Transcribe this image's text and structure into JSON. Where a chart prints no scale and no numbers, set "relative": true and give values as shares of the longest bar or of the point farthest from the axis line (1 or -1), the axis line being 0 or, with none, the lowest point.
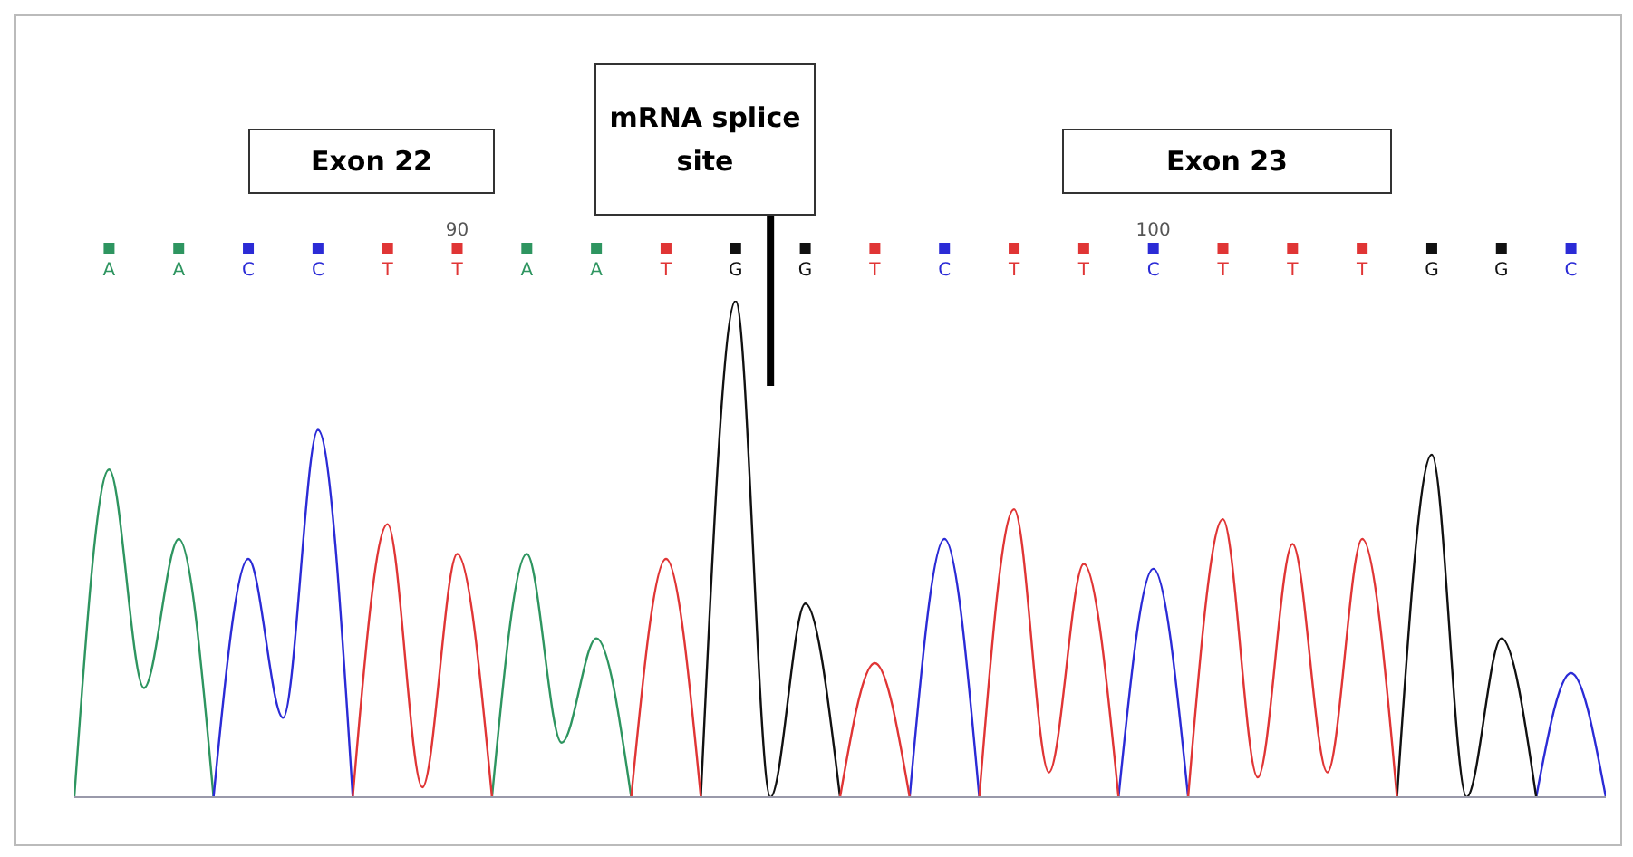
{
  "chart_data": {
    "type": "line",
    "relative": true,
    "annotations": [
      "Exon 22",
      "Exon 23",
      "A",
      "A",
      "C",
      "C",
      "T",
      "T",
      "A",
      "A",
      "T",
      "G",
      "G",
      "T",
      "C",
      "T",
      "T",
      "C",
      "T",
      "T",
      "T",
      "G",
      "G",
      "C"
    ],
    "ref_lines": [
      {
        "axis": "x",
        "value": 94.5,
        "label": "mRNA splice site",
        "color": "#000000"
      }
    ],
    "xlim": [
      84.5,
      106.5
    ],
    "xticks": [
      90,
      100
    ],
    "grid": false,
    "legend": false,
    "marker": "none",
    "line_style": "solid",
    "x": [
      84.5,
      85,
      85.5,
      86,
      86.5,
      87,
      87.5,
      88,
      88.5,
      89,
      89.5,
      90,
      90.5,
      91,
      91.5,
      92,
      92.5,
      93,
      93.5,
      94,
      94.5,
      95,
      95.5,
      96,
      96.5,
      97,
      97.5,
      98,
      98.5,
      99,
      99.5,
      100,
      100.5,
      101,
      101.5,
      102,
      102.5,
      103,
      103.5,
      104,
      104.5,
      105,
      105.5,
      106,
      106.5
    ],
    "series": [
      {
        "color": "#2e9560",
        "values": [
          0,
          0.66,
          0.22,
          0.52,
          0,
          null,
          null,
          null,
          null,
          null,
          null,
          null,
          0,
          0.49,
          0.11,
          0.32,
          0,
          null,
          null,
          null,
          null,
          null,
          null,
          null,
          null,
          null,
          null,
          null,
          null,
          null,
          null,
          null,
          null,
          null,
          null,
          null,
          null,
          null,
          null,
          null,
          null,
          null,
          null,
          null,
          null
        ]
      },
      {
        "color": "#2b2bd6",
        "values": [
          null,
          null,
          null,
          null,
          0,
          0.48,
          0.16,
          0.74,
          0,
          null,
          null,
          null,
          null,
          null,
          null,
          null,
          null,
          null,
          null,
          null,
          null,
          null,
          null,
          null,
          0,
          0.52,
          0,
          null,
          null,
          null,
          0,
          0.46,
          0,
          null,
          null,
          null,
          null,
          null,
          null,
          null,
          null,
          null,
          0,
          0.25,
          0
        ]
      },
      {
        "color": "#111111",
        "values": [
          null,
          null,
          null,
          null,
          null,
          null,
          null,
          null,
          null,
          null,
          null,
          null,
          null,
          null,
          null,
          null,
          null,
          null,
          0,
          1,
          0,
          0.39,
          0,
          null,
          null,
          null,
          null,
          null,
          null,
          null,
          null,
          null,
          null,
          null,
          null,
          null,
          null,
          null,
          0,
          0.69,
          0,
          0.32,
          0,
          null,
          null
        ]
      },
      {
        "color": "#e03535",
        "values": [
          null,
          null,
          null,
          null,
          null,
          null,
          null,
          null,
          0,
          0.55,
          0.02,
          0.49,
          0,
          null,
          null,
          null,
          0,
          0.48,
          0,
          null,
          null,
          null,
          0,
          0.27,
          0,
          null,
          0,
          0.58,
          0.05,
          0.47,
          0,
          null,
          0,
          0.56,
          0.04,
          0.51,
          0.05,
          0.52,
          0,
          null,
          null,
          null,
          null,
          null,
          null
        ]
      }
    ]
  }
}
